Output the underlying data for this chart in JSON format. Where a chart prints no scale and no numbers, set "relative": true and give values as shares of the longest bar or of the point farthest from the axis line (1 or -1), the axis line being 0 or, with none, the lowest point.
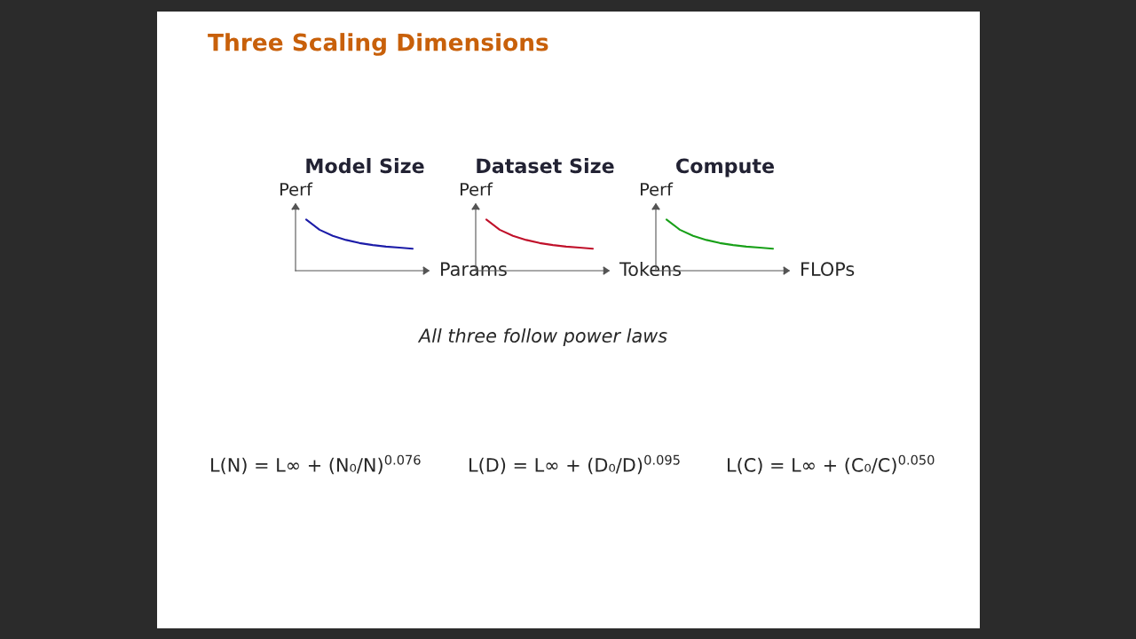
{
  "chart_data": [
    {
      "type": "other",
      "title": "Three Scaling Dimensions",
      "annotations": [
        "All three follow power laws",
        "L(N) = L∞ + (N₀/N)$^{0.076}$",
        "L(D) = L∞ + (D₀/D)$^{0.095}$",
        "L(C) = L∞ + (C₀/C)$^{0.050}$"
      ]
    },
    {
      "type": "line",
      "title": "Model Size",
      "xlabel": "Params",
      "ylabel": "Perf",
      "relative": true,
      "categories": [
        null,
        null,
        null,
        null,
        null,
        null,
        null,
        null,
        null
      ],
      "series": [
        {
          "color": "#1c1ca8",
          "values": [
            1.0,
            0.8,
            0.68,
            0.6,
            0.54,
            0.5,
            0.47,
            0.45,
            0.43
          ]
        }
      ]
    },
    {
      "type": "line",
      "title": "Dataset Size",
      "xlabel": "Tokens",
      "ylabel": "Perf",
      "relative": true,
      "categories": [
        null,
        null,
        null,
        null,
        null,
        null,
        null,
        null,
        null
      ],
      "series": [
        {
          "color": "#c0102a",
          "values": [
            1.0,
            0.8,
            0.68,
            0.6,
            0.54,
            0.5,
            0.47,
            0.45,
            0.43
          ]
        }
      ]
    },
    {
      "type": "line",
      "title": "Compute",
      "xlabel": "FLOPs",
      "ylabel": "Perf",
      "relative": true,
      "categories": [
        null,
        null,
        null,
        null,
        null,
        null,
        null,
        null,
        null
      ],
      "series": [
        {
          "color": "#18a018",
          "values": [
            1.0,
            0.8,
            0.68,
            0.6,
            0.54,
            0.5,
            0.47,
            0.45,
            0.43
          ]
        }
      ]
    }
  ]
}
